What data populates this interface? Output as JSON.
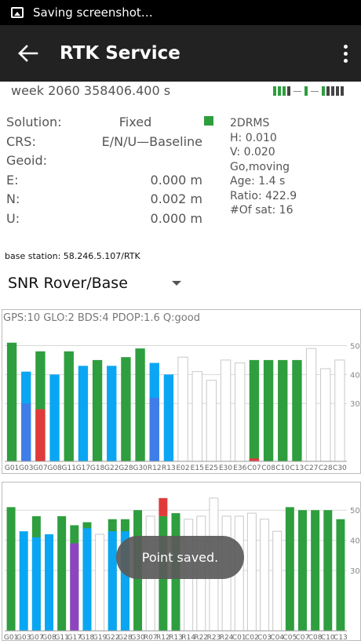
{
  "status_bar": {
    "text": "Saving screenshot…"
  },
  "app_bar": {
    "title": "RTK Service"
  },
  "week_line": "week 2060 358406.400 s",
  "solution": {
    "rows": [
      {
        "label": "Solution:",
        "value": "Fixed"
      },
      {
        "label": "CRS:",
        "value": "E/N/U—Baseline"
      },
      {
        "label": "Geoid:",
        "value": ""
      },
      {
        "label": "E:",
        "value": "0.000 m"
      },
      {
        "label": "N:",
        "value": "0.002 m"
      },
      {
        "label": "U:",
        "value": "0.000 m"
      }
    ],
    "fix_color": "#2e9e3e"
  },
  "right_info": {
    "lines": [
      "2DRMS",
      "H: 0.010",
      "V: 0.020",
      "Go,moving",
      "Age: 1.4 s",
      "Ratio: 422.9",
      "#Of sat: 16"
    ]
  },
  "base_station": "base station: 58.246.5.107/RTK",
  "snr_selector": {
    "label": "SNR Rover/Base"
  },
  "snr_summary": "GPS:10 GLO:2 BDS:4 PDOP:1.6 Q:good",
  "colors": {
    "green": "#2e9e3e",
    "blue": "#0aa6f3",
    "darkblue": "#3f7ee8",
    "red": "#e03a3a",
    "purple": "#8e44c0"
  },
  "chart_data": [
    {
      "type": "bar",
      "ylim": [
        10,
        55
      ],
      "yticks": [
        30,
        40,
        50
      ],
      "categories": [
        "G01",
        "G03",
        "G07",
        "G08",
        "G11",
        "G17",
        "G18",
        "G22",
        "G28",
        "G30",
        "R12",
        "R13",
        "E02",
        "E15",
        "E25",
        "E30",
        "E36",
        "C07",
        "C08",
        "C10",
        "C13",
        "C27",
        "C28",
        "C30"
      ],
      "series": [
        {
          "values": [
            51,
            41,
            48,
            40,
            48,
            43,
            45,
            43,
            46,
            49,
            44,
            40,
            46,
            41,
            38,
            45,
            44,
            45,
            45,
            45,
            45,
            49,
            42,
            45
          ],
          "kinds": [
            "green",
            "blue",
            "green",
            "blue",
            "green",
            "blue",
            "green",
            "blue",
            "green",
            "green",
            "blue",
            "blue",
            "empty",
            "empty",
            "empty",
            "empty",
            "empty",
            "green",
            "green",
            "green",
            "green",
            "empty",
            "empty",
            "empty"
          ]
        },
        {
          "values": [
            null,
            30,
            28,
            null,
            null,
            null,
            null,
            null,
            null,
            null,
            32,
            null,
            null,
            null,
            null,
            null,
            null,
            11,
            null,
            null,
            null,
            null,
            null,
            null
          ],
          "kinds": [
            null,
            "darkblue",
            "red",
            null,
            null,
            null,
            null,
            null,
            null,
            null,
            "darkblue",
            null,
            null,
            null,
            null,
            null,
            null,
            "red",
            null,
            null,
            null,
            null,
            null,
            null
          ]
        }
      ]
    },
    {
      "type": "bar",
      "ylim": [
        10,
        55
      ],
      "yticks": [
        30,
        40,
        50
      ],
      "categories": [
        "G01",
        "G03",
        "G07",
        "G08",
        "G11",
        "G17",
        "G18",
        "G19",
        "G22",
        "G28",
        "G30",
        "R07",
        "R12",
        "R13",
        "R14",
        "R22",
        "R23",
        "R24",
        "C01",
        "C02",
        "C03",
        "C04",
        "C05",
        "C07",
        "C08",
        "C10",
        "C13"
      ],
      "series": [
        {
          "values": [
            51,
            43,
            48,
            42,
            48,
            45,
            46,
            42,
            47,
            47,
            50,
            48,
            48,
            49,
            47,
            48,
            54,
            48,
            48,
            49,
            47,
            43,
            51,
            50,
            50,
            50,
            47
          ],
          "kinds": [
            "green",
            "blue",
            "green",
            "blue",
            "green",
            "green",
            "green",
            "empty",
            "green",
            "green",
            "green",
            "empty",
            "green",
            "green",
            "empty",
            "empty",
            "empty",
            "empty",
            "empty",
            "empty",
            "empty",
            "empty",
            "green",
            "green",
            "green",
            "green",
            "green"
          ]
        },
        {
          "values": [
            null,
            null,
            41,
            null,
            null,
            39,
            44,
            null,
            43,
            43,
            null,
            null,
            54,
            null,
            null,
            null,
            null,
            null,
            null,
            null,
            null,
            null,
            null,
            null,
            null,
            null,
            null
          ],
          "kinds": [
            null,
            null,
            "blue",
            null,
            null,
            "purple",
            "blue",
            null,
            "blue",
            "blue",
            null,
            null,
            "red",
            null,
            null,
            null,
            null,
            null,
            null,
            null,
            null,
            null,
            null,
            null,
            null,
            null,
            null
          ]
        }
      ]
    }
  ],
  "toast": "Point saved."
}
